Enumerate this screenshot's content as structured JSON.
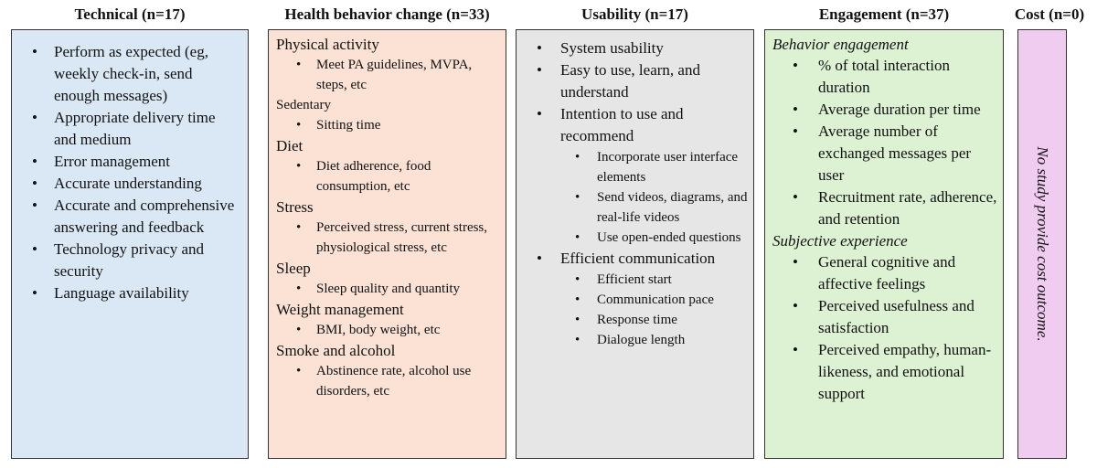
{
  "columns": {
    "technical": {
      "title": "Technical (n=17)",
      "bullets": [
        "Perform as expected (eg, weekly check-in, send enough messages)",
        "Appropriate delivery time and medium",
        "Error management",
        "Accurate understanding",
        "Accurate and comprehensive answering and feedback",
        "Technology privacy and security",
        "Language availability"
      ]
    },
    "health": {
      "title": "Health behavior change (n=33)",
      "groups": [
        {
          "heading": "Physical activity",
          "items": [
            "Meet PA guidelines, MVPA, steps, etc"
          ]
        },
        {
          "heading": "Sedentary",
          "items": [
            "Sitting time"
          ]
        },
        {
          "heading": "Diet",
          "items": [
            "Diet adherence, food consumption, etc"
          ]
        },
        {
          "heading": "Stress",
          "items": [
            "Perceived stress, current stress, physiological stress, etc"
          ]
        },
        {
          "heading": "Sleep",
          "items": [
            "Sleep quality and quantity"
          ]
        },
        {
          "heading": "Weight management",
          "items": [
            "BMI, body weight, etc"
          ]
        },
        {
          "heading": "Smoke and alcohol",
          "items": [
            "Abstinence rate, alcohol use disorders, etc"
          ]
        }
      ]
    },
    "usability": {
      "title": "Usability (n=17)",
      "items": [
        {
          "label": "System usability",
          "sub": []
        },
        {
          "label": "Easy to use, learn, and understand",
          "sub": []
        },
        {
          "label": "Intention to use and recommend",
          "sub": [
            "Incorporate user interface elements",
            "Send videos, diagrams, and real-life videos",
            "Use open-ended questions"
          ]
        },
        {
          "label": "Efficient communication",
          "sub": [
            "Efficient start",
            "Communication pace",
            "Response time",
            "Dialogue length"
          ]
        }
      ]
    },
    "engagement": {
      "title": "Engagement (n=37)",
      "groups": [
        {
          "heading": "Behavior engagement",
          "items": [
            "% of total interaction duration",
            "Average duration per time",
            "Average number of exchanged messages per user",
            "Recruitment rate, adherence, and retention"
          ]
        },
        {
          "heading": "Subjective experience",
          "items": [
            "General cognitive and affective feelings",
            "Perceived usefulness and satisfaction",
            "Perceived empathy, human-likeness, and emotional support"
          ]
        }
      ]
    },
    "cost": {
      "title": "Cost (n=0)",
      "text": "No study provide cost outcome."
    }
  },
  "colors": {
    "technical": "#dae8f6",
    "health": "#fbe2d5",
    "usability": "#e6e6e6",
    "engagement": "#dcf2d3",
    "cost": "#f0cdf0"
  }
}
